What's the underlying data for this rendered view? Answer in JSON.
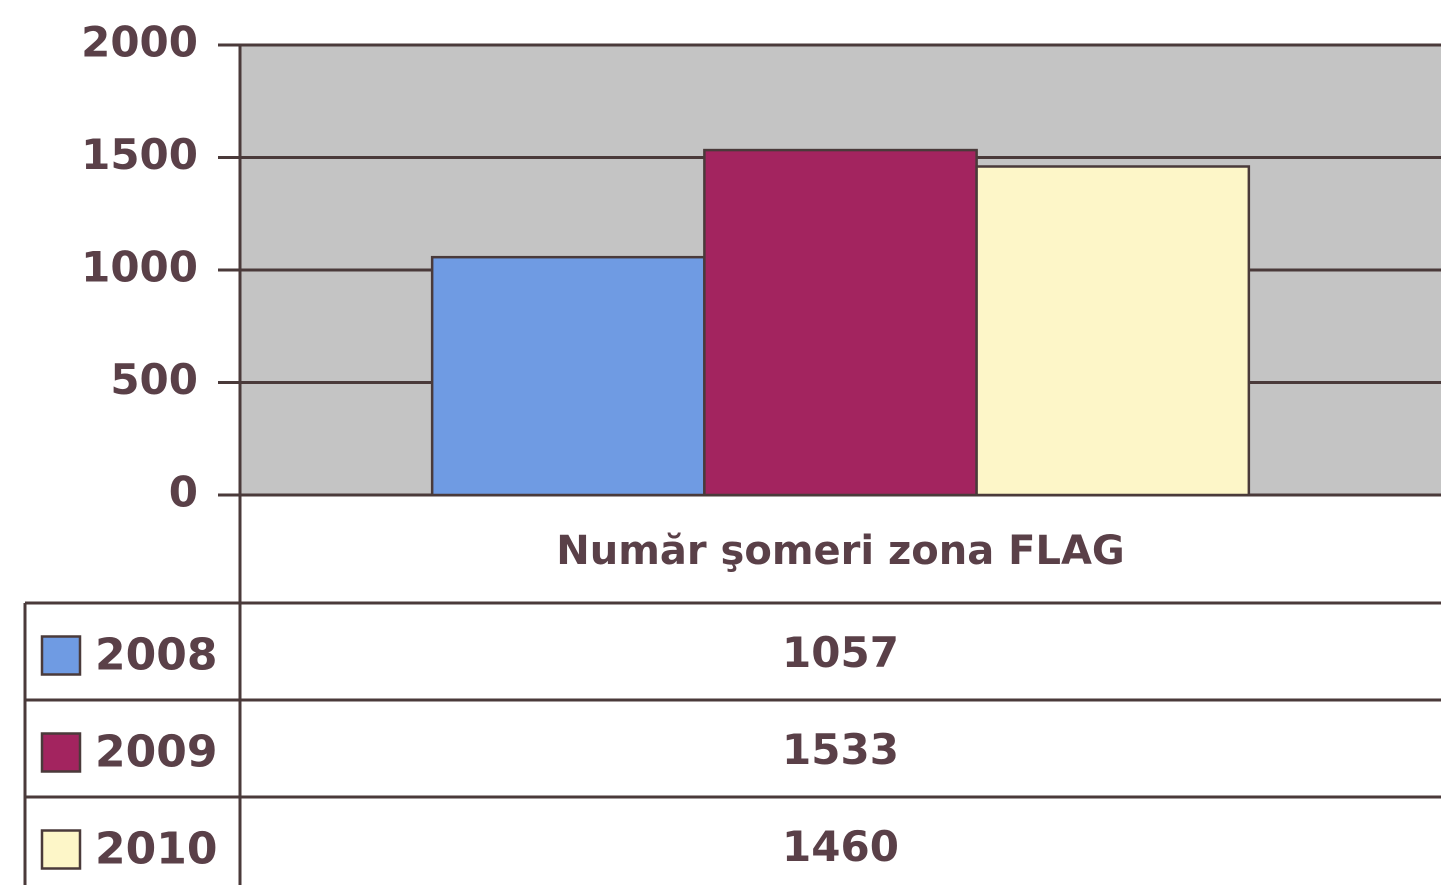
{
  "chart_data": {
    "type": "bar",
    "categories": [
      "Număr şomeri zona FLAG"
    ],
    "series": [
      {
        "name": "2008",
        "color": "#6f9be3",
        "values": [
          1057
        ]
      },
      {
        "name": "2009",
        "color": "#a3245f",
        "values": [
          1533
        ]
      },
      {
        "name": "2010",
        "color": "#fdf6c8",
        "values": [
          1460
        ]
      }
    ],
    "ylim": [
      0,
      2000
    ],
    "yticks": [
      0,
      500,
      1000,
      1500,
      2000
    ],
    "grid": true,
    "legend": "table"
  }
}
